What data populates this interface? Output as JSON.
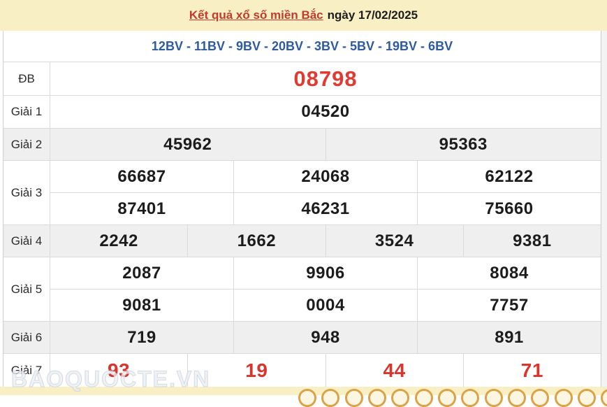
{
  "header": {
    "title_link": "Kết quả xổ số miền Bắc",
    "title_date": "ngày 17/02/2025"
  },
  "station_line": "12BV - 11BV - 9BV - 20BV - 3BV - 5BV - 19BV - 6BV",
  "results": [
    {
      "label": "ĐB",
      "style": "special",
      "shade": false,
      "height_class": "h-db",
      "rows": [
        [
          "08798"
        ]
      ]
    },
    {
      "label": "Giải 1",
      "style": "normal",
      "shade": false,
      "height_class": "h-g1",
      "rows": [
        [
          "04520"
        ]
      ]
    },
    {
      "label": "Giải 2",
      "style": "normal",
      "shade": true,
      "height_class": "h-g246",
      "rows": [
        [
          "45962",
          "95363"
        ]
      ]
    },
    {
      "label": "Giải 3",
      "style": "normal",
      "shade": false,
      "height_class": "h-g35",
      "rows": [
        [
          "66687",
          "24068",
          "62122"
        ],
        [
          "87401",
          "46231",
          "75660"
        ]
      ]
    },
    {
      "label": "Giải 4",
      "style": "normal",
      "shade": true,
      "height_class": "h-g246",
      "rows": [
        [
          "2242",
          "1662",
          "3524",
          "9381"
        ]
      ]
    },
    {
      "label": "Giải 5",
      "style": "normal",
      "shade": false,
      "height_class": "h-g35",
      "rows": [
        [
          "2087",
          "9906",
          "8084"
        ],
        [
          "9081",
          "0004",
          "7757"
        ]
      ]
    },
    {
      "label": "Giải 6",
      "style": "normal",
      "shade": true,
      "height_class": "h-g246",
      "rows": [
        [
          "719",
          "948",
          "891"
        ]
      ]
    },
    {
      "label": "Giải 7",
      "style": "red",
      "shade": false,
      "height_class": "h-g7",
      "rows": [
        [
          "93",
          "19",
          "44",
          "71"
        ]
      ]
    }
  ],
  "watermark": "BAOQUOCTE.VN",
  "colors": {
    "header_background": "#F9EFC4",
    "title_red": "#C23A2B",
    "station_blue": "#2E5A9E",
    "special_number_red": "#E03A32",
    "prize7_red": "#D7352E",
    "shade_row_gray": "#EFEFEF",
    "ball_orange": "#DBA345"
  },
  "decor": {
    "ball_centers_x": [
      440,
      473,
      507,
      540,
      573,
      607,
      640,
      673,
      707,
      740,
      773,
      807,
      840,
      873
    ]
  }
}
